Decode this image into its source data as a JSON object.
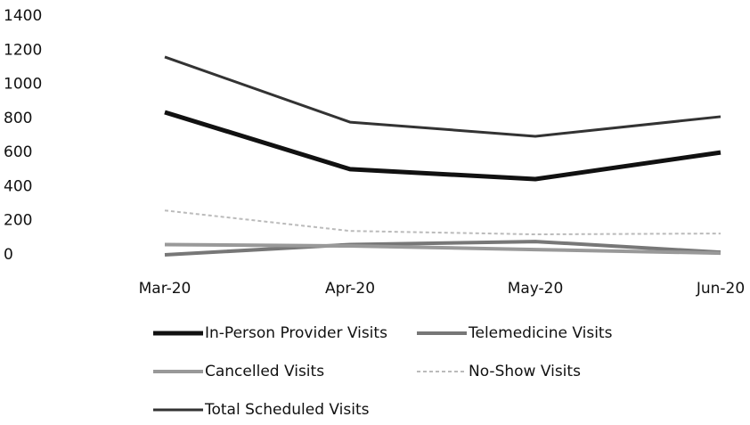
{
  "chart_data": {
    "type": "line",
    "categories": [
      "Mar-20",
      "Apr-20",
      "May-20",
      "Jun-20"
    ],
    "series": [
      {
        "name": "In-Person Provider Visits",
        "color": "#111111",
        "values": [
          836,
          502,
          444,
          600
        ]
      },
      {
        "name": "Telemedicine Visits",
        "color": "#777777",
        "values": [
          0,
          60,
          78,
          15
        ]
      },
      {
        "name": "Cancelled Visits",
        "color": "#999999",
        "values": [
          60,
          52,
          31,
          10
        ]
      },
      {
        "name": "No-Show Visits",
        "color": "#bbbbbb",
        "values": [
          260,
          140,
          120,
          125
        ]
      },
      {
        "name": "Total Scheduled Visits",
        "color": "#333333",
        "values": [
          1160,
          778,
          695,
          810
        ]
      }
    ],
    "ylim": [
      0,
      1400
    ],
    "yticks": [
      0,
      200,
      400,
      600,
      800,
      1000,
      1200,
      1400
    ],
    "grid": false,
    "legend": "bottom"
  }
}
